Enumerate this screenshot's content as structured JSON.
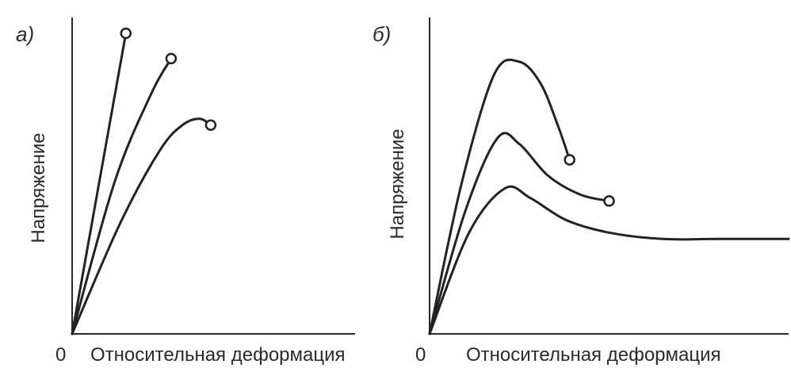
{
  "chart_data": [
    {
      "type": "line",
      "panel_label": "а)",
      "xlabel": "Относительная деформация",
      "ylabel": "Напряжение",
      "origin_label": "0",
      "xlim": [
        0,
        10
      ],
      "ylim": [
        0,
        10
      ],
      "grid": false,
      "series": [
        {
          "x": [
            0,
            1.9
          ],
          "y": [
            0,
            9.5
          ],
          "end_marker": true
        },
        {
          "x": [
            0,
            1.5,
            2.8,
            3.5
          ],
          "y": [
            0,
            4.8,
            7.6,
            8.7
          ],
          "end_marker": true
        },
        {
          "x": [
            0,
            1.7,
            3.1,
            3.9,
            4.5,
            4.9
          ],
          "y": [
            0,
            3.5,
            5.8,
            6.6,
            6.8,
            6.6
          ],
          "end_marker": true
        }
      ]
    },
    {
      "type": "line",
      "panel_label": "б)",
      "xlabel": "Относительная деформация",
      "ylabel": "Напряжение",
      "origin_label": "0",
      "xlim": [
        0,
        10
      ],
      "ylim": [
        0,
        10
      ],
      "grid": false,
      "series": [
        {
          "x": [
            0,
            0.9,
            1.8,
            2.5,
            3.1,
            3.6,
            3.9
          ],
          "y": [
            0,
            4.8,
            8.2,
            8.6,
            7.9,
            6.5,
            5.5
          ],
          "end_marker": true
        },
        {
          "x": [
            0,
            1.0,
            1.9,
            2.5,
            3.3,
            4.2,
            5.0
          ],
          "y": [
            0,
            3.9,
            6.2,
            6.0,
            5.0,
            4.4,
            4.2
          ],
          "end_marker": true
        },
        {
          "x": [
            0,
            1.1,
            2.1,
            2.8,
            3.8,
            5.0,
            6.5,
            8.0,
            10.0
          ],
          "y": [
            0,
            3.2,
            4.6,
            4.3,
            3.6,
            3.2,
            3.0,
            3.0,
            3.0
          ],
          "end_marker": false
        }
      ]
    }
  ]
}
